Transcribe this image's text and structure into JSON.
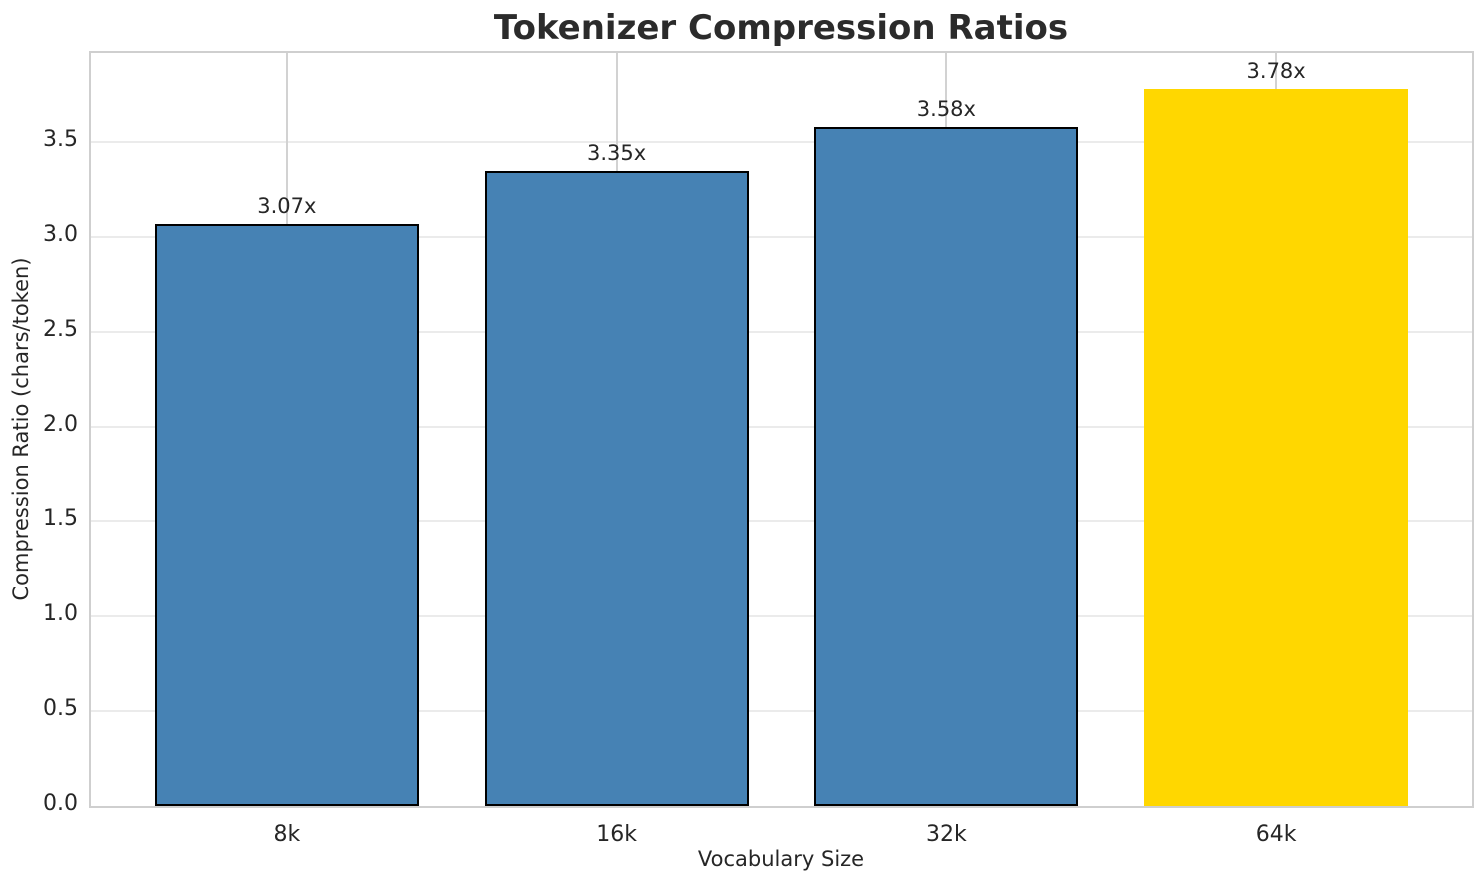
{
  "chart_data": {
    "type": "bar",
    "title": "Tokenizer Compression Ratios",
    "xlabel": "Vocabulary Size",
    "ylabel": "Compression Ratio (chars/token)",
    "categories": [
      "8k",
      "16k",
      "32k",
      "64k"
    ],
    "values": [
      3.07,
      3.35,
      3.58,
      3.78
    ],
    "bar_labels": [
      "3.07x",
      "3.35x",
      "3.58x",
      "3.78x"
    ],
    "bar_colors": [
      "#4682B4",
      "#4682B4",
      "#4682B4",
      "#FFD700"
    ],
    "bar_edge_colors": [
      "#000000",
      "#000000",
      "#000000",
      null
    ],
    "ylim": [
      0,
      3.97
    ],
    "yticks": [
      0.0,
      0.5,
      1.0,
      1.5,
      2.0,
      2.5,
      3.0,
      3.5
    ],
    "ytick_labels": [
      "0.0",
      "0.5",
      "1.0",
      "1.5",
      "2.0",
      "2.5",
      "3.0",
      "3.5"
    ],
    "grid": true,
    "legend_position": "none",
    "colors": {
      "grid_horizontal": "#ebebeb",
      "grid_vertical": "#d2d2d2",
      "spine": "#cfcfcf",
      "tick_text": "#262626",
      "title_text": "#2b2b2b"
    }
  }
}
